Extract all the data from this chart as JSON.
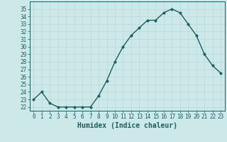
{
  "x": [
    0,
    1,
    2,
    3,
    4,
    5,
    6,
    7,
    8,
    9,
    10,
    11,
    12,
    13,
    14,
    15,
    16,
    17,
    18,
    19,
    20,
    21,
    22,
    23
  ],
  "y": [
    23,
    24,
    22.5,
    22,
    22,
    22,
    22,
    22,
    23.5,
    25.5,
    28,
    30,
    31.5,
    32.5,
    33.5,
    33.5,
    34.5,
    35,
    34.5,
    33,
    31.5,
    29,
    27.5,
    26.5
  ],
  "line_color": "#1a6060",
  "marker": "o",
  "markersize": 2.5,
  "linewidth": 1.0,
  "bg_color": "#cce8e8",
  "grid_color": "#b8d8d8",
  "xlabel": "Humidex (Indice chaleur)",
  "xlim": [
    -0.5,
    23.5
  ],
  "ylim": [
    21.5,
    36
  ],
  "yticks": [
    22,
    23,
    24,
    25,
    26,
    27,
    28,
    29,
    30,
    31,
    32,
    33,
    34,
    35
  ],
  "xticks": [
    0,
    1,
    2,
    3,
    4,
    5,
    6,
    7,
    8,
    9,
    10,
    11,
    12,
    13,
    14,
    15,
    16,
    17,
    18,
    19,
    20,
    21,
    22,
    23
  ],
  "tick_fontsize": 5.5,
  "label_fontsize": 7.0
}
